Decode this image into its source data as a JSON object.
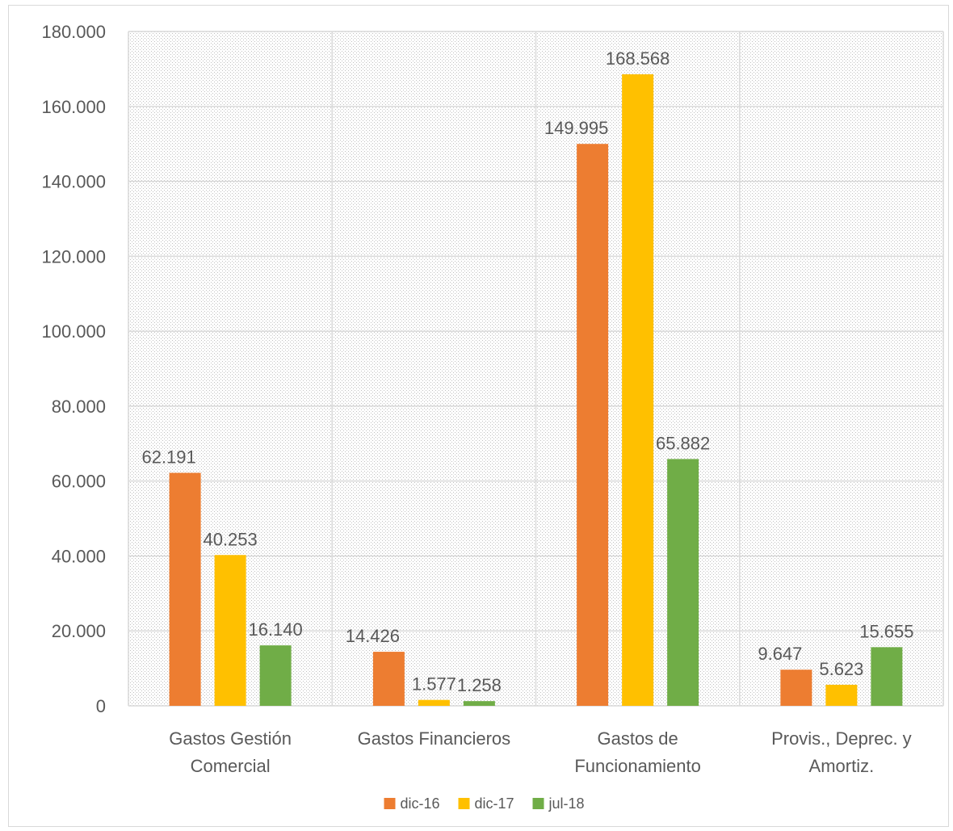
{
  "chart_data": {
    "type": "bar",
    "categories": [
      [
        "Gastos Gestión",
        "Comercial"
      ],
      [
        "Gastos Financieros"
      ],
      [
        "Gastos de",
        "Funcionamiento"
      ],
      [
        "Provis., Deprec. y",
        "Amortiz."
      ]
    ],
    "series": [
      {
        "name": "dic-16",
        "color": "#ed7d31",
        "values": [
          62191,
          14426,
          149995,
          9647
        ],
        "labels": [
          "62.191",
          "14.426",
          "149.995",
          "9.647"
        ]
      },
      {
        "name": "dic-17",
        "color": "#ffc000",
        "values": [
          40253,
          1577,
          168568,
          5623
        ],
        "labels": [
          "40.253",
          "1.577",
          "168.568",
          "5.623"
        ]
      },
      {
        "name": "jul-18",
        "color": "#70ad47",
        "values": [
          16140,
          1258,
          65882,
          15655
        ],
        "labels": [
          "16.140",
          "1.258",
          "65.882",
          "15.655"
        ]
      }
    ],
    "ylim": [
      0,
      180000
    ],
    "yticks": [
      0,
      20000,
      40000,
      60000,
      80000,
      100000,
      120000,
      140000,
      160000,
      180000
    ],
    "ytick_labels": [
      "0",
      "20.000",
      "40.000",
      "60.000",
      "80.000",
      "100.000",
      "120.000",
      "140.000",
      "160.000",
      "180.000"
    ],
    "title": "",
    "xlabel": "",
    "ylabel": "",
    "grid": true,
    "plot_background": "dotted-pattern",
    "legend_position": "bottom"
  }
}
